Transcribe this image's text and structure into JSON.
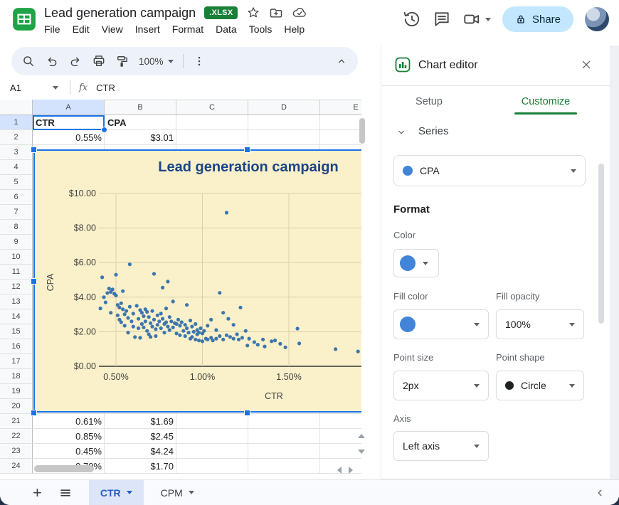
{
  "header": {
    "title": "Lead generation campaign",
    "file_badge": ".XLSX",
    "menus": [
      "File",
      "Edit",
      "View",
      "Insert",
      "Format",
      "Data",
      "Tools",
      "Help"
    ],
    "share_label": "Share"
  },
  "toolbar": {
    "zoom_value": "100%"
  },
  "formula_bar": {
    "cell_ref": "A1",
    "value": "CTR"
  },
  "sheet": {
    "columns": [
      "A",
      "B",
      "C",
      "D",
      "E"
    ],
    "row_count": 24,
    "selected_cell": "A1",
    "cells": [
      {
        "row": 1,
        "values": [
          "CTR",
          "CPA"
        ],
        "header": true
      },
      {
        "row": 2,
        "values": [
          "0.55%",
          "$3.01"
        ]
      },
      {
        "row": 21,
        "values": [
          "0.61%",
          "$1.69"
        ]
      },
      {
        "row": 22,
        "values": [
          "0.85%",
          "$2.45"
        ]
      },
      {
        "row": 23,
        "values": [
          "0.45%",
          "$4.24"
        ]
      },
      {
        "row": 24,
        "values": [
          "0.70%",
          "$1.70"
        ]
      }
    ]
  },
  "chart_data": {
    "type": "scatter",
    "title": "Lead generation campaign",
    "xlabel": "CTR",
    "ylabel": "CPA",
    "x_ticks": [
      "0.50%",
      "1.00%",
      "1.50%"
    ],
    "x_tick_values": [
      0.5,
      1.0,
      1.5
    ],
    "y_ticks": [
      "$0.00",
      "$2.00",
      "$4.00",
      "$6.00",
      "$8.00",
      "$10.00"
    ],
    "y_tick_values": [
      0,
      2,
      4,
      6,
      8,
      10
    ],
    "xlim": [
      0.4,
      1.95
    ],
    "ylim": [
      0,
      10
    ],
    "grid": true,
    "background": "#faf0ca",
    "title_color": "#1c4587",
    "point_color": "#3d76ad",
    "points": [
      [
        0.41,
        3.35
      ],
      [
        0.42,
        5.15
      ],
      [
        0.43,
        4.0
      ],
      [
        0.44,
        3.7
      ],
      [
        0.45,
        4.24
      ],
      [
        0.46,
        4.5
      ],
      [
        0.47,
        4.3
      ],
      [
        0.47,
        3.1
      ],
      [
        0.48,
        4.45
      ],
      [
        0.49,
        4.2
      ],
      [
        0.5,
        5.3
      ],
      [
        0.5,
        4.1
      ],
      [
        0.51,
        3.55
      ],
      [
        0.51,
        2.95
      ],
      [
        0.52,
        3.4
      ],
      [
        0.52,
        2.7
      ],
      [
        0.53,
        3.65
      ],
      [
        0.53,
        2.55
      ],
      [
        0.54,
        4.35
      ],
      [
        0.54,
        3.3
      ],
      [
        0.55,
        3.01
      ],
      [
        0.55,
        2.35
      ],
      [
        0.56,
        3.2
      ],
      [
        0.57,
        2.8
      ],
      [
        0.57,
        1.95
      ],
      [
        0.58,
        3.45
      ],
      [
        0.58,
        5.9
      ],
      [
        0.59,
        2.6
      ],
      [
        0.6,
        3.05
      ],
      [
        0.6,
        2.3
      ],
      [
        0.61,
        1.69
      ],
      [
        0.62,
        3.5
      ],
      [
        0.63,
        2.75
      ],
      [
        0.63,
        2.2
      ],
      [
        0.64,
        3.25
      ],
      [
        0.64,
        1.65
      ],
      [
        0.65,
        3.1
      ],
      [
        0.65,
        2.45
      ],
      [
        0.66,
        2.9
      ],
      [
        0.66,
        2.25
      ],
      [
        0.67,
        3.3
      ],
      [
        0.67,
        2.6
      ],
      [
        0.68,
        3.15
      ],
      [
        0.68,
        2.05
      ],
      [
        0.69,
        2.85
      ],
      [
        0.69,
        1.85
      ],
      [
        0.7,
        1.7
      ],
      [
        0.7,
        2.5
      ],
      [
        0.71,
        3.2
      ],
      [
        0.71,
        2.3
      ],
      [
        0.72,
        5.35
      ],
      [
        0.72,
        2.7
      ],
      [
        0.73,
        2.15
      ],
      [
        0.73,
        1.75
      ],
      [
        0.74,
        2.95
      ],
      [
        0.74,
        2.4
      ],
      [
        0.75,
        2.6
      ],
      [
        0.76,
        3.05
      ],
      [
        0.76,
        2.2
      ],
      [
        0.77,
        4.55
      ],
      [
        0.77,
        2.75
      ],
      [
        0.78,
        2.45
      ],
      [
        0.78,
        1.95
      ],
      [
        0.79,
        3.35
      ],
      [
        0.79,
        2.55
      ],
      [
        0.8,
        4.9
      ],
      [
        0.8,
        2.3
      ],
      [
        0.81,
        2.85
      ],
      [
        0.81,
        2.1
      ],
      [
        0.82,
        2.6
      ],
      [
        0.83,
        3.75
      ],
      [
        0.83,
        2.25
      ],
      [
        0.84,
        2.5
      ],
      [
        0.85,
        2.45
      ],
      [
        0.85,
        1.9
      ],
      [
        0.86,
        2.7
      ],
      [
        0.87,
        2.35
      ],
      [
        0.87,
        1.8
      ],
      [
        0.88,
        2.55
      ],
      [
        0.89,
        2.05
      ],
      [
        0.9,
        2.4
      ],
      [
        0.9,
        1.75
      ],
      [
        0.91,
        3.55
      ],
      [
        0.91,
        2.2
      ],
      [
        0.92,
        1.95
      ],
      [
        0.93,
        2.65
      ],
      [
        0.93,
        1.6
      ],
      [
        0.94,
        2.3
      ],
      [
        0.94,
        1.7
      ],
      [
        0.95,
        2.0
      ],
      [
        0.96,
        2.45
      ],
      [
        0.96,
        1.55
      ],
      [
        0.97,
        2.1
      ],
      [
        0.97,
        1.85
      ],
      [
        0.98,
        1.95
      ],
      [
        0.98,
        1.5
      ],
      [
        0.99,
        2.2
      ],
      [
        1.0,
        1.9
      ],
      [
        1.0,
        1.45
      ],
      [
        1.01,
        2.05
      ],
      [
        1.02,
        1.6
      ],
      [
        1.03,
        2.35
      ],
      [
        1.03,
        1.55
      ],
      [
        1.05,
        2.7
      ],
      [
        1.05,
        1.65
      ],
      [
        1.06,
        1.5
      ],
      [
        1.08,
        2.1
      ],
      [
        1.08,
        1.6
      ],
      [
        1.1,
        4.25
      ],
      [
        1.1,
        1.75
      ],
      [
        1.12,
        3.1
      ],
      [
        1.12,
        1.55
      ],
      [
        1.14,
        8.89
      ],
      [
        1.14,
        1.8
      ],
      [
        1.15,
        2.75
      ],
      [
        1.16,
        1.7
      ],
      [
        1.18,
        2.4
      ],
      [
        1.18,
        1.6
      ],
      [
        1.2,
        1.85
      ],
      [
        1.21,
        1.55
      ],
      [
        1.22,
        3.4
      ],
      [
        1.23,
        1.65
      ],
      [
        1.25,
        2.05
      ],
      [
        1.26,
        1.2
      ],
      [
        1.27,
        1.6
      ],
      [
        1.3,
        1.4
      ],
      [
        1.32,
        1.25
      ],
      [
        1.35,
        1.55
      ],
      [
        1.36,
        1.15
      ],
      [
        1.4,
        1.45
      ],
      [
        1.42,
        1.5
      ],
      [
        1.45,
        1.3
      ],
      [
        1.48,
        1.1
      ],
      [
        1.55,
        2.18
      ],
      [
        1.56,
        1.32
      ],
      [
        1.77,
        0.99
      ],
      [
        1.9,
        0.86
      ]
    ]
  },
  "panel": {
    "title": "Chart editor",
    "tabs": [
      "Setup",
      "Customize"
    ],
    "active_tab": "Customize",
    "series_section_label": "Series",
    "series_value": "CPA",
    "format_heading": "Format",
    "color_label": "Color",
    "fill_color_label": "Fill color",
    "fill_opacity_label": "Fill opacity",
    "fill_opacity_value": "100%",
    "point_size_label": "Point size",
    "point_size_value": "2px",
    "point_shape_label": "Point shape",
    "point_shape_value": "Circle",
    "axis_label": "Axis",
    "axis_value": "Left axis",
    "series_blue": "#4184d8"
  },
  "tabs_bar": {
    "tabs": [
      {
        "label": "CTR",
        "active": true
      },
      {
        "label": "CPM",
        "active": false
      }
    ]
  },
  "colors": {
    "selection_blue": "#1a73e8",
    "selected_header_bg": "#d3e3fd",
    "accent_green": "#188038",
    "share_bg": "#c2e7ff",
    "active_tab_bg": "#dce6f8"
  }
}
